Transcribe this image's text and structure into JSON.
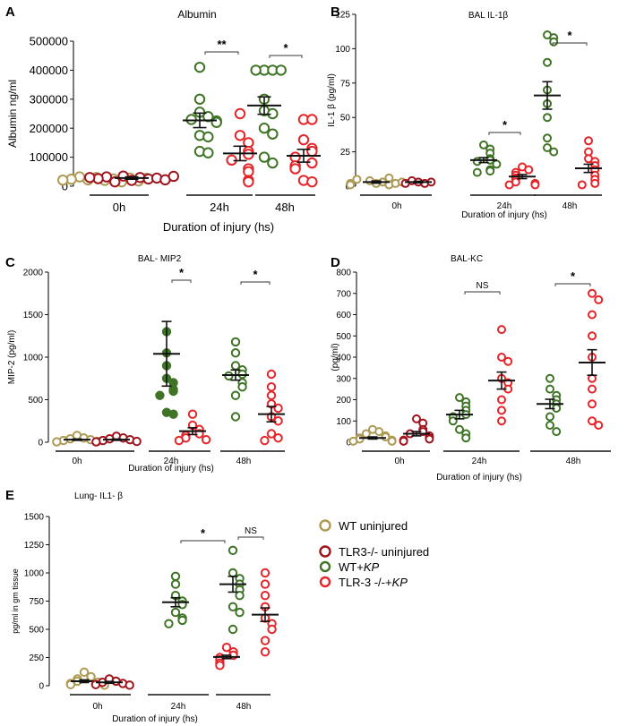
{
  "colors": {
    "wt_uninjured": "#ad9a55",
    "tlr3_uninjured": "#a0141e",
    "wt_kp": "#3f7426",
    "tlr3_kp": "#e5252a",
    "axis": "#111111"
  },
  "legend": {
    "items": [
      {
        "label": "WT uninjured",
        "color": "#ad9a55"
      },
      {
        "label": "TLR3-/- uninjured",
        "color": "#a0141e"
      },
      {
        "label": "WT+KP",
        "label_prefix": "WT+",
        "label_italic": "KP",
        "color": "#3f7426"
      },
      {
        "label": "TLR-3 -/-+KP",
        "label_prefix": "TLR-3 -/-+",
        "label_italic": "KP",
        "color": "#e5252a"
      }
    ]
  },
  "chart_data": [
    {
      "panel": "A",
      "type": "scatter",
      "title": "Albumin",
      "ylabel": "Albumin ng/ml",
      "xlabel": "Duration of injury (hs)",
      "ylim": [
        0,
        500000
      ],
      "yticks": [
        0,
        100000,
        200000,
        300000,
        400000,
        500000
      ],
      "ytick_labels": [
        "0",
        "100000",
        "200000",
        "300000",
        "400000",
        "500000"
      ],
      "groups": [
        "0h",
        "24h",
        "48h"
      ],
      "series": [
        {
          "key": "wt_uninjured",
          "group": "0h",
          "mean": 25000,
          "sem": 4000,
          "values": [
            20000,
            25000,
            30000,
            15000,
            22000,
            28000,
            32000,
            18000,
            24000,
            27000,
            21000
          ]
        },
        {
          "key": "tlr3_uninjured",
          "group": "0h",
          "mean": 28000,
          "sem": 4000,
          "values": [
            20000,
            30000,
            35000,
            25000,
            15000,
            28000,
            32000,
            22000,
            26000,
            34000,
            30000
          ]
        },
        {
          "key": "wt_kp",
          "group": "24h",
          "mean": 227000,
          "sem": 25000,
          "values": [
            410000,
            300000,
            255000,
            240000,
            230000,
            225000,
            220000,
            175000,
            170000,
            120000,
            115000
          ]
        },
        {
          "key": "tlr3_kp",
          "group": "24h",
          "mean": 113000,
          "sem": 25000,
          "values": [
            250000,
            175000,
            150000,
            120000,
            110000,
            90000,
            60000,
            50000,
            20000,
            15000
          ]
        },
        {
          "key": "wt_kp",
          "group": "48h",
          "mean": 278000,
          "sem": 30000,
          "values": [
            400000,
            400000,
            400000,
            400000,
            300000,
            260000,
            250000,
            200000,
            180000,
            100000,
            80000
          ]
        },
        {
          "key": "tlr3_kp",
          "group": "48h",
          "mean": 105000,
          "sem": 22000,
          "values": [
            230000,
            230000,
            160000,
            130000,
            120000,
            100000,
            80000,
            70000,
            60000,
            20000,
            15000
          ]
        }
      ],
      "significance": [
        {
          "group": "24h",
          "label": "**"
        },
        {
          "group": "48h",
          "label": "*"
        }
      ]
    },
    {
      "panel": "B",
      "type": "scatter",
      "title": "BAL IL-1β",
      "ylabel": "IL-1 β (pg/ml)",
      "xlabel": "Duration of injury (hs)",
      "ylim": [
        0,
        125
      ],
      "yticks": [
        0,
        25,
        50,
        75,
        100,
        125
      ],
      "ytick_labels": [
        "0",
        "25",
        "50",
        "75",
        "100",
        "125"
      ],
      "groups": [
        "0h",
        "24h",
        "48h"
      ],
      "series": [
        {
          "key": "wt_uninjured",
          "group": "0h",
          "mean": 3,
          "sem": 0.8,
          "values": [
            2,
            3,
            4,
            6,
            1,
            2,
            5,
            3,
            2,
            1
          ]
        },
        {
          "key": "tlr3_uninjured",
          "group": "0h",
          "mean": 3,
          "sem": 0.6,
          "values": [
            3,
            2,
            4,
            3,
            2
          ]
        },
        {
          "key": "wt_kp",
          "group": "24h",
          "mean": 19,
          "sem": 1.8,
          "values": [
            30,
            27,
            24,
            20,
            19,
            18,
            16,
            12,
            11,
            10
          ]
        },
        {
          "key": "tlr3_kp",
          "group": "24h",
          "mean": 7,
          "sem": 1.5,
          "values": [
            14,
            12,
            10,
            8,
            6,
            5,
            3,
            2,
            1,
            1
          ]
        },
        {
          "key": "wt_kp",
          "group": "48h",
          "mean": 66,
          "sem": 10,
          "values": [
            110,
            108,
            105,
            90,
            70,
            60,
            50,
            35,
            28,
            25
          ]
        },
        {
          "key": "tlr3_kp",
          "group": "48h",
          "mean": 13,
          "sem": 3,
          "values": [
            33,
            25,
            20,
            18,
            15,
            12,
            8,
            5,
            2,
            1
          ]
        }
      ],
      "significance": [
        {
          "group": "24h",
          "label": "*"
        },
        {
          "group": "48h",
          "label": "*"
        }
      ]
    },
    {
      "panel": "C",
      "type": "scatter",
      "title": "BAL- MIP2",
      "ylabel": "MIP-2 (pg/ml)",
      "xlabel": "Duration of injury (hs)",
      "ylim": [
        0,
        2000
      ],
      "yticks": [
        0,
        500,
        1000,
        1500,
        2000
      ],
      "ytick_labels": [
        "0",
        "500",
        "1000",
        "1500",
        "2000"
      ],
      "groups": [
        "0h",
        "24h",
        "48h"
      ],
      "series": [
        {
          "key": "wt_uninjured",
          "group": "0h",
          "mean": 30,
          "sem": 8,
          "values": [
            80,
            50,
            40,
            30,
            20,
            10,
            5
          ]
        },
        {
          "key": "tlr3_uninjured",
          "group": "0h",
          "mean": 30,
          "sem": 8,
          "values": [
            70,
            50,
            40,
            30,
            20,
            10,
            5
          ]
        },
        {
          "key": "wt_kp",
          "group": "24h",
          "mean": 1040,
          "sem": 380,
          "filled": true,
          "values": [
            1300,
            1050,
            900,
            750,
            700,
            620,
            600,
            550,
            350,
            330
          ]
        },
        {
          "key": "tlr3_kp",
          "group": "24h",
          "mean": 130,
          "sem": 40,
          "values": [
            330,
            200,
            150,
            100,
            80,
            50,
            30,
            20
          ]
        },
        {
          "key": "wt_kp",
          "group": "48h",
          "mean": 790,
          "sem": 60,
          "values": [
            1180,
            1050,
            900,
            850,
            800,
            780,
            700,
            650,
            550,
            300
          ]
        },
        {
          "key": "tlr3_kp",
          "group": "48h",
          "mean": 330,
          "sem": 90,
          "values": [
            800,
            650,
            550,
            450,
            400,
            300,
            250,
            100,
            50,
            20
          ]
        }
      ],
      "significance": [
        {
          "group": "24h",
          "label": "*"
        },
        {
          "group": "48h",
          "label": "*"
        }
      ]
    },
    {
      "panel": "D",
      "type": "scatter",
      "title": "BAL-KC",
      "ylabel": "(pg/ml)",
      "xlabel": "Duration of injury (hs)",
      "ylim": [
        0,
        800
      ],
      "yticks": [
        0,
        100,
        200,
        300,
        400,
        500,
        600,
        700,
        800
      ],
      "ytick_labels": [
        "0",
        "100",
        "200",
        "300",
        "400",
        "500",
        "600",
        "700",
        "800"
      ],
      "groups": [
        "0h",
        "24h",
        "48h"
      ],
      "series": [
        {
          "key": "wt_uninjured",
          "group": "0h",
          "mean": 20,
          "sem": 5,
          "values": [
            60,
            50,
            40,
            30,
            25,
            20,
            15,
            10,
            5,
            5
          ]
        },
        {
          "key": "tlr3_uninjured",
          "group": "0h",
          "mean": 40,
          "sem": 10,
          "values": [
            110,
            90,
            60,
            50,
            40,
            30,
            20,
            15,
            10,
            5
          ]
        },
        {
          "key": "wt_kp",
          "group": "24h",
          "mean": 130,
          "sem": 20,
          "values": [
            210,
            190,
            170,
            150,
            130,
            120,
            100,
            60,
            40,
            20
          ]
        },
        {
          "key": "tlr3_kp",
          "group": "24h",
          "mean": 290,
          "sem": 40,
          "values": [
            530,
            400,
            380,
            300,
            280,
            250,
            200,
            150,
            100
          ]
        },
        {
          "key": "wt_kp",
          "group": "48h",
          "mean": 180,
          "sem": 22,
          "values": [
            300,
            250,
            220,
            200,
            180,
            160,
            120,
            80,
            50
          ]
        },
        {
          "key": "tlr3_kp",
          "group": "48h",
          "mean": 375,
          "sem": 60,
          "values": [
            700,
            670,
            600,
            500,
            400,
            300,
            250,
            180,
            100,
            80
          ]
        }
      ],
      "significance": [
        {
          "group": "24h",
          "label": "NS"
        },
        {
          "group": "48h",
          "label": "*"
        }
      ]
    },
    {
      "panel": "E",
      "type": "scatter",
      "title": "Lung- IL1- β",
      "ylabel": "pg/ml in gm tissue",
      "xlabel": "Duration of injury (hs)",
      "ylim": [
        0,
        1500
      ],
      "yticks": [
        0,
        250,
        500,
        750,
        1000,
        1250,
        1500
      ],
      "ytick_labels": [
        "0",
        "250",
        "500",
        "750",
        "1000",
        "1250",
        "1500"
      ],
      "groups": [
        "0h",
        "24h",
        "48h"
      ],
      "series": [
        {
          "key": "wt_uninjured",
          "group": "0h",
          "mean": 40,
          "sem": 12,
          "values": [
            120,
            80,
            60,
            40,
            30,
            20,
            10,
            5
          ]
        },
        {
          "key": "tlr3_uninjured",
          "group": "0h",
          "mean": 30,
          "sem": 8,
          "values": [
            60,
            40,
            30,
            20,
            10,
            5
          ]
        },
        {
          "key": "wt_kp",
          "group": "24h",
          "mean": 740,
          "sem": 40,
          "values": [
            970,
            900,
            800,
            750,
            720,
            650,
            600,
            580,
            550
          ]
        },
        {
          "key": "tlr3_kp",
          "group": "24h",
          "mean": 255,
          "sem": 15,
          "values": [
            340,
            300,
            270,
            250,
            230,
            200,
            180
          ]
        },
        {
          "key": "wt_kp",
          "group": "48h",
          "mean": 900,
          "sem": 70,
          "values": [
            1200,
            1000,
            950,
            900,
            850,
            800,
            700,
            650,
            500
          ]
        },
        {
          "key": "tlr3_kp",
          "group": "48h",
          "mean": 630,
          "sem": 60,
          "values": [
            1000,
            900,
            800,
            700,
            600,
            550,
            500,
            400,
            300
          ]
        }
      ],
      "significance": [
        {
          "group": "24h",
          "label": "*"
        },
        {
          "group": "48h",
          "label": "NS"
        }
      ]
    }
  ]
}
